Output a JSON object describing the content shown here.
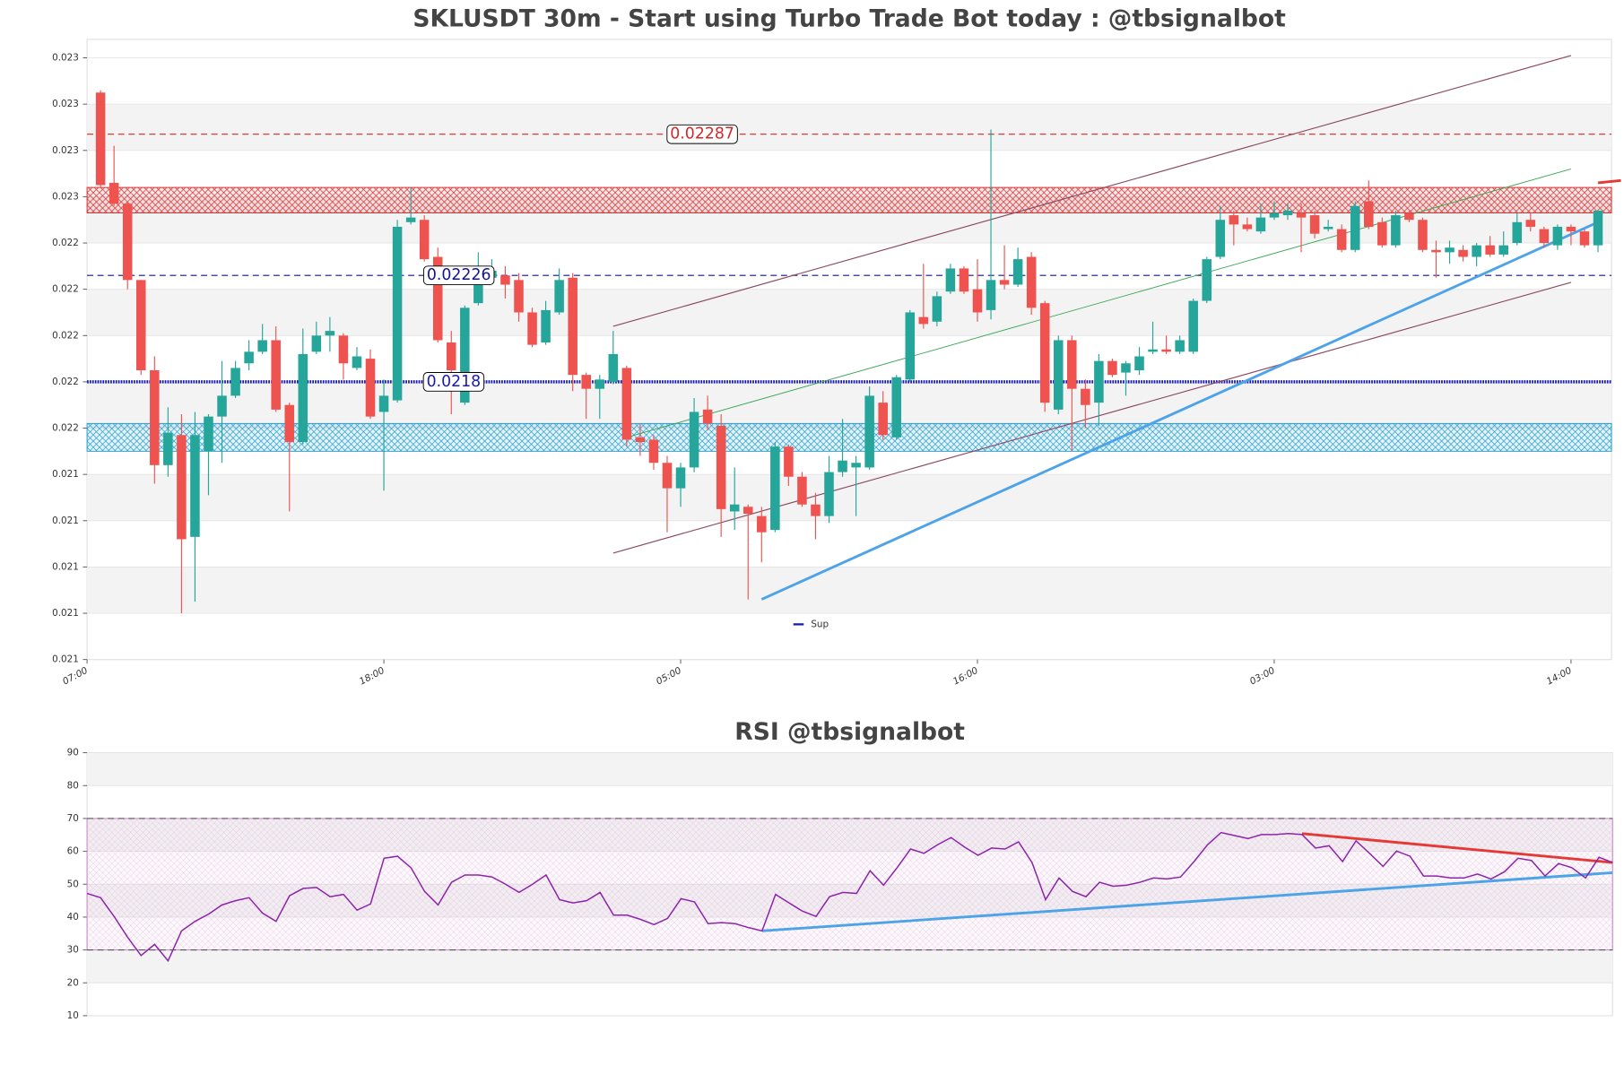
{
  "chart_data": [
    {
      "type": "candlestick",
      "title": "SKLUSDT 30m - Start using Turbo Trade Bot today : @tbsignalbot",
      "x": [
        1,
        2,
        3,
        4,
        5,
        6,
        7,
        8,
        9,
        10,
        11,
        12,
        13,
        14,
        15,
        16,
        17,
        18,
        19,
        20,
        21,
        22,
        23,
        24,
        25,
        26,
        27,
        28,
        29,
        30,
        31,
        32,
        33,
        34,
        35,
        36,
        37,
        38,
        39,
        40,
        41,
        42,
        43,
        44,
        45,
        46,
        47,
        48,
        49,
        50,
        51,
        52,
        53,
        54,
        55,
        56,
        57,
        58,
        59,
        60,
        61,
        62,
        63,
        64,
        65,
        66,
        67,
        68,
        69,
        70,
        71,
        72,
        73,
        74,
        75,
        76,
        77,
        78,
        79,
        80,
        81,
        82,
        83,
        84,
        85,
        86,
        87,
        88,
        89,
        90,
        91,
        92,
        93,
        94,
        95,
        96,
        97,
        98,
        99,
        100,
        101,
        102,
        103,
        104,
        105,
        106,
        107,
        108,
        109,
        110,
        111,
        112
      ],
      "open": [
        0.02305,
        0.02266,
        0.02257,
        0.02224,
        0.02185,
        0.02144,
        0.02157,
        0.02113,
        0.0215,
        0.02165,
        0.02174,
        0.02188,
        0.02193,
        0.02198,
        0.0217,
        0.02154,
        0.02193,
        0.022,
        0.022,
        0.02186,
        0.0219,
        0.02167,
        0.02172,
        0.02249,
        0.0225,
        0.02234,
        0.02197,
        0.02171,
        0.02214,
        0.02225,
        0.02226,
        0.02224,
        0.0221,
        0.02197,
        0.0221,
        0.02225,
        0.02183,
        0.02177,
        0.0218,
        0.02186,
        0.02156,
        0.02155,
        0.02145,
        0.02134,
        0.02143,
        0.02168,
        0.02161,
        0.02124,
        0.02126,
        0.02122,
        0.02116,
        0.02152,
        0.02139,
        0.02127,
        0.02122,
        0.02141,
        0.02143,
        0.02143,
        0.02171,
        0.02156,
        0.02181,
        0.02208,
        0.02206,
        0.02219,
        0.02229,
        0.0222,
        0.02211,
        0.02224,
        0.02222,
        0.02234,
        0.02214,
        0.02168,
        0.02198,
        0.02177,
        0.02171,
        0.02189,
        0.02184,
        0.02185,
        0.02193,
        0.02194,
        0.02193,
        0.02193,
        0.02215,
        0.02234,
        0.02252,
        0.02248,
        0.02245,
        0.02251,
        0.02252,
        0.02253,
        0.02252,
        0.02246,
        0.02246,
        0.02237,
        0.02258,
        0.02249,
        0.02239,
        0.02253,
        0.0225,
        0.02237,
        0.02236,
        0.02237,
        0.02234,
        0.02239,
        0.02235,
        0.0224,
        0.0225,
        0.02246,
        0.02239,
        0.02247,
        0.02245,
        0.02239
      ],
      "high": [
        0.02306,
        0.02282,
        0.02258,
        0.02224,
        0.02191,
        0.02169,
        0.02166,
        0.02167,
        0.02166,
        0.02189,
        0.02189,
        0.02198,
        0.02205,
        0.02204,
        0.02171,
        0.02203,
        0.02206,
        0.02208,
        0.02201,
        0.02195,
        0.02194,
        0.02181,
        0.0225,
        0.02264,
        0.02252,
        0.02238,
        0.02202,
        0.02213,
        0.02236,
        0.02233,
        0.0223,
        0.02227,
        0.02212,
        0.02215,
        0.02229,
        0.02227,
        0.02184,
        0.02183,
        0.02202,
        0.02187,
        0.02162,
        0.02157,
        0.02148,
        0.02145,
        0.02173,
        0.02174,
        0.02166,
        0.02143,
        0.02127,
        0.02126,
        0.02154,
        0.02153,
        0.02141,
        0.02132,
        0.02148,
        0.02164,
        0.02148,
        0.02178,
        0.02176,
        0.02183,
        0.02211,
        0.02231,
        0.02219,
        0.02231,
        0.0223,
        0.02233,
        0.02289,
        0.02239,
        0.02238,
        0.02236,
        0.02215,
        0.022,
        0.022,
        0.02181,
        0.02192,
        0.0219,
        0.02189,
        0.02195,
        0.02206,
        0.022,
        0.022,
        0.02216,
        0.02234,
        0.02256,
        0.02254,
        0.02251,
        0.02257,
        0.02258,
        0.02257,
        0.02257,
        0.02254,
        0.0225,
        0.02248,
        0.02258,
        0.02267,
        0.02251,
        0.02254,
        0.02254,
        0.02251,
        0.02241,
        0.02241,
        0.02239,
        0.0224,
        0.02243,
        0.02245,
        0.02253,
        0.02253,
        0.02247,
        0.02248,
        0.02248,
        0.02246,
        0.02254
      ],
      "low": [
        0.02264,
        0.02256,
        0.0222,
        0.02183,
        0.02136,
        0.02139,
        0.0208,
        0.02085,
        0.02131,
        0.02145,
        0.02173,
        0.02185,
        0.02192,
        0.02167,
        0.02124,
        0.02153,
        0.02192,
        0.02193,
        0.02181,
        0.02185,
        0.02164,
        0.02133,
        0.02171,
        0.02248,
        0.02232,
        0.02197,
        0.02166,
        0.0217,
        0.02213,
        0.02223,
        0.02216,
        0.02206,
        0.02195,
        0.02196,
        0.02209,
        0.02176,
        0.02164,
        0.02164,
        0.02179,
        0.02152,
        0.02148,
        0.02142,
        0.02115,
        0.02126,
        0.02141,
        0.02159,
        0.02113,
        0.02116,
        0.02086,
        0.02102,
        0.02115,
        0.02135,
        0.02126,
        0.02112,
        0.02119,
        0.02139,
        0.02122,
        0.02142,
        0.02155,
        0.02155,
        0.0218,
        0.02203,
        0.02204,
        0.02218,
        0.02218,
        0.02206,
        0.02207,
        0.0222,
        0.02221,
        0.02209,
        0.02167,
        0.02166,
        0.0215,
        0.0216,
        0.02161,
        0.02182,
        0.02174,
        0.02183,
        0.02192,
        0.02192,
        0.02192,
        0.02192,
        0.02214,
        0.02233,
        0.02239,
        0.02245,
        0.02244,
        0.0225,
        0.0225,
        0.02236,
        0.02242,
        0.02245,
        0.02236,
        0.02236,
        0.02246,
        0.02238,
        0.02238,
        0.02249,
        0.02236,
        0.02225,
        0.02231,
        0.02232,
        0.0223,
        0.02234,
        0.02234,
        0.02239,
        0.02245,
        0.02238,
        0.02237,
        0.02239,
        0.02238,
        0.02236
      ],
      "close": [
        0.02265,
        0.02257,
        0.02224,
        0.02185,
        0.02144,
        0.02158,
        0.02112,
        0.02157,
        0.02165,
        0.02174,
        0.02186,
        0.02193,
        0.02198,
        0.02168,
        0.02154,
        0.02192,
        0.022,
        0.02202,
        0.02188,
        0.02191,
        0.02165,
        0.02174,
        0.02247,
        0.02251,
        0.02233,
        0.02198,
        0.02185,
        0.02212,
        0.02224,
        0.02228,
        0.02222,
        0.0221,
        0.02196,
        0.02211,
        0.02224,
        0.02183,
        0.02177,
        0.02181,
        0.02192,
        0.02155,
        0.02154,
        0.02145,
        0.02134,
        0.02143,
        0.02167,
        0.02162,
        0.02125,
        0.02127,
        0.02123,
        0.02115,
        0.02152,
        0.02139,
        0.02127,
        0.02122,
        0.02141,
        0.02146,
        0.02145,
        0.02174,
        0.02157,
        0.02182,
        0.0221,
        0.02205,
        0.02217,
        0.02229,
        0.02219,
        0.0221,
        0.02224,
        0.02222,
        0.02233,
        0.02212,
        0.02171,
        0.02198,
        0.02177,
        0.0217,
        0.02189,
        0.02183,
        0.02188,
        0.02191,
        0.02194,
        0.02193,
        0.02198,
        0.02215,
        0.02233,
        0.0225,
        0.02248,
        0.02246,
        0.02251,
        0.02253,
        0.02254,
        0.02251,
        0.02244,
        0.02247,
        0.02237,
        0.02256,
        0.02247,
        0.02239,
        0.02252,
        0.0225,
        0.02237,
        0.02236,
        0.02238,
        0.02234,
        0.02239,
        0.02235,
        0.02239,
        0.02249,
        0.02247,
        0.0224,
        0.02247,
        0.02245,
        0.02239,
        0.02254
      ],
      "up_color": "#26a69a",
      "down_color": "#ef5350",
      "xlim": [
        0,
        113
      ],
      "xticks": [
        {
          "value": 0,
          "label": "07:00"
        },
        {
          "value": 22,
          "label": "18:00"
        },
        {
          "value": 44,
          "label": "05:00"
        },
        {
          "value": 66,
          "label": "16:00"
        },
        {
          "value": 88,
          "label": "03:00"
        },
        {
          "value": 110,
          "label": "14:00"
        }
      ],
      "ylim": [
        0.0206,
        0.02328
      ],
      "yticks": [
        {
          "value": 0.0206,
          "label": "0.021"
        },
        {
          "value": 0.0208,
          "label": "0.021"
        },
        0.021,
        {
          "value": 0.0212,
          "label": "0.021"
        },
        {
          "value": 0.0214,
          "label": "0.021"
        },
        {
          "value": 0.0216,
          "label": "0.022"
        },
        {
          "value": 0.0218,
          "label": "0.022"
        },
        0.022,
        {
          "value": 0.0222,
          "label": "0.022"
        },
        {
          "value": 0.0224,
          "label": "0.022"
        },
        {
          "value": 0.0226,
          "label": "0.023"
        },
        {
          "value": 0.0228,
          "label": "0.023"
        },
        {
          "value": 0.023,
          "label": "0.023"
        },
        {
          "value": 0.0232,
          "label": "0.023"
        }
      ],
      "grid": true,
      "zones": [
        {
          "range": [
            0.02253,
            0.02264
          ],
          "color": "#d62728"
        },
        {
          "range": [
            0.0215,
            0.02162
          ],
          "color": "#1f9bcf"
        }
      ],
      "levels": [
        {
          "value": 0.02287,
          "color": "#d62728",
          "dash": "dashed"
        },
        {
          "value": 0.02226,
          "color": "#14148c",
          "dash": "dashed"
        },
        {
          "value": 0.0218,
          "color": "#1a1ab4",
          "dash": "dotted"
        }
      ],
      "lines": [
        {
          "x": [
            39,
            110
          ],
          "y": [
            0.02204,
            0.02321
          ],
          "color": "#8b4a62"
        },
        {
          "x": [
            39,
            110
          ],
          "y": [
            0.02106,
            0.02223
          ],
          "color": "#8b4a62"
        },
        {
          "x": [
            40,
            110
          ],
          "y": [
            0.02156,
            0.02272
          ],
          "color": "#3aa655"
        },
        {
          "x": [
            50,
            112
          ],
          "y": [
            0.02086,
            0.02249
          ],
          "color": "#4da3e8"
        },
        {
          "x": [
            112,
            113.7
          ],
          "y": [
            0.02266,
            0.02267
          ],
          "color": "#e53935"
        }
      ],
      "legend": [
        {
          "name": "Sup",
          "color": "#1a1ab4"
        }
      ]
    },
    {
      "type": "line",
      "title": "RSI @tbsignalbot",
      "x": [
        0,
        1,
        2,
        3,
        4,
        5,
        6,
        7,
        8,
        9,
        10,
        11,
        12,
        13,
        14,
        15,
        16,
        17,
        18,
        19,
        20,
        21,
        22,
        23,
        24,
        25,
        26,
        27,
        28,
        29,
        30,
        31,
        32,
        33,
        34,
        35,
        36,
        37,
        38,
        39,
        40,
        41,
        42,
        43,
        44,
        45,
        46,
        47,
        48,
        49,
        50,
        51,
        52,
        53,
        54,
        55,
        56,
        57,
        58,
        59,
        60,
        61,
        62,
        63,
        64,
        65,
        66,
        67,
        68,
        69,
        70,
        71,
        72,
        73,
        74,
        75,
        76,
        77,
        78,
        79,
        80,
        81,
        82,
        83,
        84,
        85,
        86,
        87,
        88,
        89,
        90,
        91,
        92,
        93,
        94,
        95,
        96,
        97,
        98,
        99,
        100,
        101,
        102,
        103,
        104,
        105,
        106,
        107,
        108,
        109,
        110,
        111,
        112,
        113
      ],
      "values": [
        47.2,
        45.9,
        40.2,
        33.9,
        28.3,
        31.7,
        26.7,
        35.8,
        38.7,
        40.9,
        43.7,
        45,
        45.9,
        41.2,
        38.7,
        46.5,
        48.7,
        49,
        46.2,
        46.9,
        42.1,
        44,
        57.9,
        58.5,
        55,
        47.8,
        43.7,
        50.6,
        52.8,
        52.8,
        52.2,
        50,
        47.5,
        50,
        52.8,
        45.3,
        44.3,
        45,
        47.5,
        40.6,
        40.6,
        39.3,
        37.7,
        39.6,
        45.6,
        44.6,
        38,
        38.3,
        38,
        36.8,
        35.8,
        46.9,
        44.3,
        41.8,
        40.2,
        46.2,
        47.5,
        47.2,
        54.1,
        49.7,
        55,
        60.7,
        59.4,
        62,
        64.2,
        61.3,
        58.8,
        61,
        60.7,
        62.9,
        56.6,
        45.3,
        51.9,
        47.8,
        46.2,
        50.6,
        49.4,
        49.7,
        50.6,
        51.9,
        51.6,
        52.2,
        56.9,
        62,
        65.7,
        64.8,
        63.9,
        65.1,
        65.1,
        65.4,
        65.1,
        61,
        61.7,
        56.9,
        63.2,
        59.4,
        55.4,
        60.1,
        58.5,
        52.5,
        52.5,
        51.9,
        51.9,
        53.1,
        51.6,
        53.8,
        57.9,
        57.2,
        52.5,
        56.3,
        55,
        51.9,
        58.2,
        56.6
      ],
      "color": "#8e24aa",
      "xlim": [
        0,
        113
      ],
      "ylim": [
        10,
        90
      ],
      "yticks": [
        10,
        20,
        30,
        40,
        50,
        60,
        70,
        80,
        90
      ],
      "grid": true,
      "zones": [
        {
          "range": [
            30,
            70
          ],
          "color": "#c77dbf"
        }
      ],
      "levels": [
        {
          "value": 70,
          "color": "#555555",
          "dash": "dashed"
        },
        {
          "value": 30,
          "color": "#555555",
          "dash": "dashed"
        }
      ],
      "lines": [
        {
          "x": [
            50,
            113
          ],
          "y": [
            35.8,
            53.5
          ],
          "color": "#4da3e8"
        },
        {
          "x": [
            90,
            113
          ],
          "y": [
            65.4,
            56.6
          ],
          "color": "#e53935"
        }
      ]
    }
  ]
}
